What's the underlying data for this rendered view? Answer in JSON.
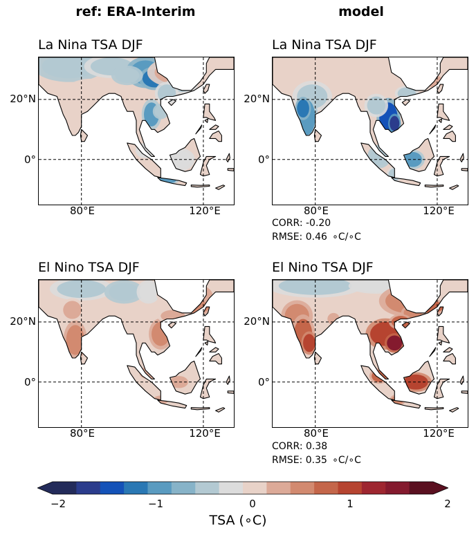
{
  "headers": {
    "left": "ref: ERA-Interim",
    "right": "model"
  },
  "panels": [
    {
      "title": "La Nina TSA DJF"
    },
    {
      "title": "La Nina TSA DJF"
    },
    {
      "title": "El Nino TSA DJF"
    },
    {
      "title": "El Nino TSA DJF"
    }
  ],
  "axes": {
    "ylabels": [
      "20°N",
      "0°"
    ],
    "xlabels": [
      "80°E",
      "120°E"
    ]
  },
  "stats": {
    "lanina": {
      "corr": "CORR: -0.20",
      "rmse": "RMSE: 0.46  ∘C/∘C"
    },
    "elnino": {
      "corr": "CORR: 0.38",
      "rmse": "RMSE: 0.35  ∘C/∘C"
    }
  },
  "colorbar": {
    "title": "TSA (∘C)",
    "ticks": [
      "−2",
      "−1",
      "0",
      "1",
      "2"
    ],
    "vmin": -2,
    "vmax": 2,
    "levels": 16,
    "colors": [
      "#232b5a",
      "#2b3c8c",
      "#1452b8",
      "#2a78b4",
      "#5a9bc0",
      "#87b3c8",
      "#b3c9d2",
      "#dcdcdc",
      "#e8d2c8",
      "#dcaa98",
      "#d28a70",
      "#c4664a",
      "#b64430",
      "#9e2630",
      "#841a2e",
      "#5a1020"
    ],
    "extend": "both"
  },
  "chart_data": [
    {
      "type": "heatmap",
      "title": "La Nina TSA DJF",
      "source": "ref: ERA-Interim",
      "xlim_lon": [
        66,
        130
      ],
      "ylim_lat": [
        -15,
        34
      ],
      "xticks": [
        "80°E",
        "120°E"
      ],
      "yticks": [
        "20°N",
        "0°"
      ],
      "values": {
        "north_india_himalaya": -0.4,
        "tibet_east": -0.9,
        "south_china": 0.3,
        "indochina": -0.6,
        "maritime": -0.2
      }
    },
    {
      "type": "heatmap",
      "title": "La Nina TSA DJF",
      "source": "model",
      "xlim_lon": [
        66,
        130
      ],
      "ylim_lat": [
        -15,
        34
      ],
      "xticks": [
        "80°E",
        "120°E"
      ],
      "yticks": [
        "20°N",
        "0°"
      ],
      "values": {
        "north_india_himalaya": 0.2,
        "tibet_east": 0.3,
        "south_india": -0.8,
        "indochina": -1.2,
        "maritime": -0.6
      }
    },
    {
      "type": "heatmap",
      "title": "El Nino TSA DJF",
      "source": "ref: ERA-Interim",
      "xlim_lon": [
        66,
        130
      ],
      "ylim_lat": [
        -15,
        34
      ],
      "xticks": [
        "80°E",
        "120°E"
      ],
      "yticks": [
        "20°N",
        "0°"
      ],
      "values": {
        "north_india_himalaya": -0.3,
        "south_china": 0.5,
        "south_india": 0.5,
        "indochina": 0.4,
        "maritime": 0.3
      }
    },
    {
      "type": "heatmap",
      "title": "El Nino TSA DJF",
      "source": "model",
      "xlim_lon": [
        66,
        130
      ],
      "ylim_lat": [
        -15,
        34
      ],
      "xticks": [
        "80°E",
        "120°E"
      ],
      "yticks": [
        "20°N",
        "0°"
      ],
      "values": {
        "north_india_himalaya": -0.3,
        "south_china": 0.6,
        "south_india": 0.9,
        "indochina": 1.2,
        "maritime": 0.9
      }
    }
  ]
}
